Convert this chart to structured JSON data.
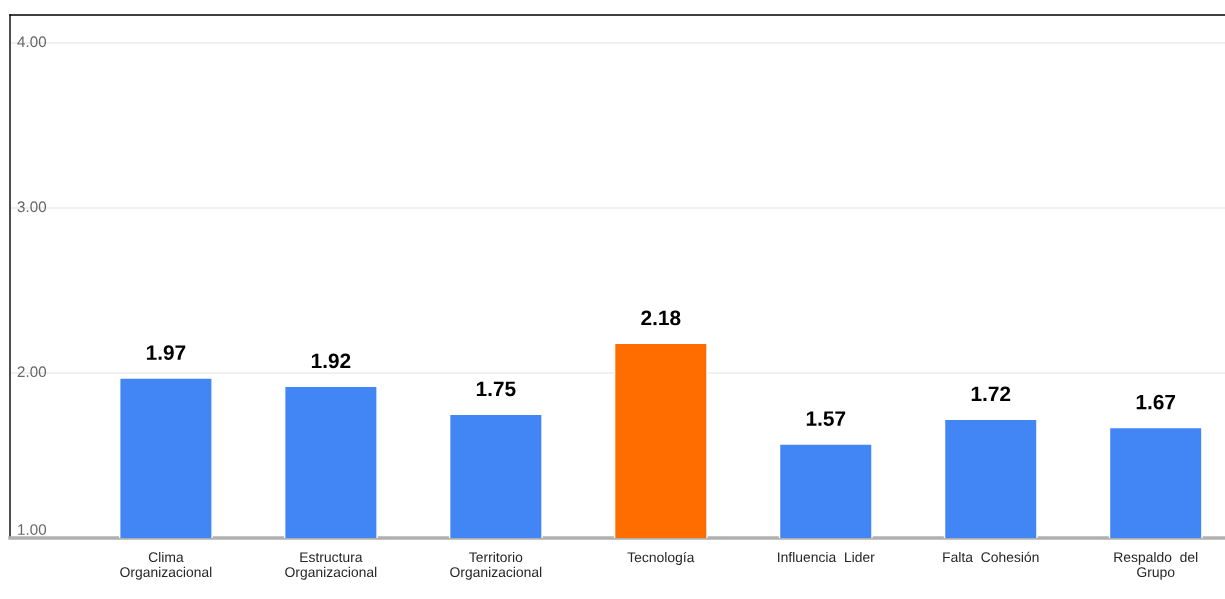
{
  "chart_data": {
    "type": "bar",
    "categories": [
      "Clima\nOrganizacional",
      "Estructura\nOrganizacional",
      "Territorio\nOrganizacional",
      "Tecnología",
      "Influencia  Lider",
      "Falta  Cohesión",
      "Respaldo  del\nGrupo"
    ],
    "values": [
      1.97,
      1.92,
      1.75,
      2.18,
      1.57,
      1.72,
      1.67
    ],
    "colors": [
      "#4285f4",
      "#4285f4",
      "#4285f4",
      "#ff6d01",
      "#4285f4",
      "#4285f4",
      "#4285f4"
    ],
    "ylim": [
      1,
      4.17
    ],
    "yticks": [
      {
        "value": 1,
        "label": "1.00"
      },
      {
        "value": 2,
        "label": "2.00"
      },
      {
        "value": 3,
        "label": "3.00"
      },
      {
        "value": 4,
        "label": "4.00"
      }
    ],
    "grid": "y",
    "data_labels": true,
    "legend": false
  }
}
